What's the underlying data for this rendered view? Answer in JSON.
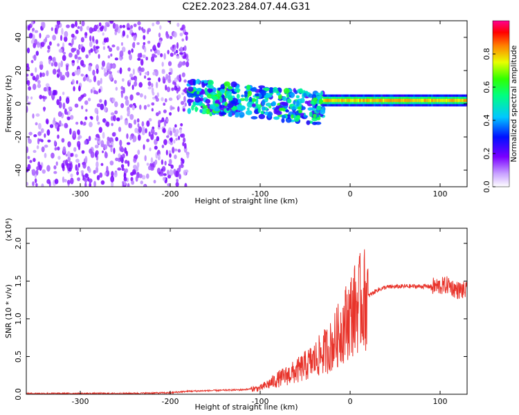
{
  "title": "C2E2.2023.284.07.44.G31",
  "chart_data": [
    {
      "type": "heatmap",
      "title": "C2E2.2023.284.07.44.G31",
      "xlabel": "Height of straight line (km)",
      "ylabel": "Frequency (Hz)",
      "xlim": [
        -360,
        130
      ],
      "ylim": [
        -50,
        50
      ],
      "x_ticks": [
        -300,
        -200,
        -100,
        0,
        100
      ],
      "y_ticks": [
        -40,
        -20,
        0,
        20,
        40
      ],
      "colorbar": {
        "label": "Normalized spectral amplitude",
        "range": [
          0.0,
          1.0
        ],
        "ticks": [
          0.0,
          0.2,
          0.4,
          0.6,
          0.8
        ]
      },
      "features": [
        {
          "x_range": [
            -360,
            -180
          ],
          "freq_range": [
            -50,
            50
          ],
          "amplitude": 0.15,
          "pattern": "scattered noise"
        },
        {
          "x_range": [
            -180,
            -30
          ],
          "freq_center": 5,
          "freq_spread": 12,
          "amplitude": 0.4,
          "pattern": "broadband signal"
        },
        {
          "x_range": [
            -30,
            130
          ],
          "freq_center": 2,
          "freq_spread": 2,
          "amplitude": 0.8,
          "pattern": "narrow carrier"
        }
      ]
    },
    {
      "type": "line",
      "xlabel": "Height of straight line (km)",
      "ylabel": "SNR (10 * v/v)",
      "y_multiplier": "(x10⁴)",
      "xlim": [
        -360,
        130
      ],
      "ylim": [
        0,
        2.2
      ],
      "x_ticks": [
        -300,
        -200,
        -100,
        0,
        100
      ],
      "y_ticks": [
        0.0,
        0.5,
        1.0,
        1.5,
        2.0
      ],
      "series": [
        {
          "color": "#e8332a",
          "x": [
            -360,
            -300,
            -250,
            -200,
            -180,
            -150,
            -120,
            -100,
            -80,
            -60,
            -40,
            -30,
            -20,
            -10,
            0,
            10,
            20,
            30,
            40,
            60,
            80,
            100,
            110,
            115,
            120,
            130
          ],
          "y": [
            0.01,
            0.01,
            0.01,
            0.02,
            0.04,
            0.05,
            0.06,
            0.08,
            0.2,
            0.3,
            0.45,
            0.55,
            0.65,
            0.85,
            1.05,
            1.2,
            1.3,
            1.38,
            1.42,
            1.43,
            1.43,
            1.43,
            1.45,
            1.4,
            1.38,
            1.37
          ]
        }
      ]
    }
  ]
}
